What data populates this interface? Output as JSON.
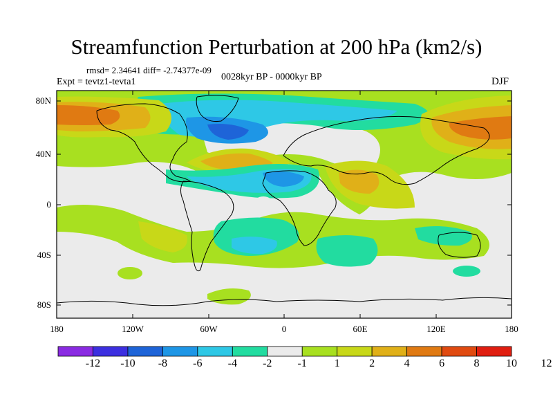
{
  "title": "Streamfunction Perturbation at 200 hPa (km2/s)",
  "stats": "rmsd= 2.34641  diff= -2.74377e-09",
  "experiment": "Expt = tevtz1-tevta1",
  "period": "0028kyr BP - 0000kyr BP",
  "season": "DJF",
  "lat_ticks": [
    "80N",
    "40N",
    "0",
    "40S",
    "80S"
  ],
  "lon_ticks": [
    "180",
    "120W",
    "60W",
    "0",
    "60E",
    "120E",
    "180"
  ],
  "colorbar": {
    "colors": [
      "#8a2be2",
      "#3c2fe0",
      "#1e64d8",
      "#1e96e6",
      "#2ec8e6",
      "#22dca0",
      "#ebebeb",
      "#a8e020",
      "#c8d818",
      "#e0b018",
      "#e07a12",
      "#e04a10",
      "#e01e10"
    ],
    "labels": [
      "-12",
      "-10",
      "-8",
      "-6",
      "-4",
      "-2",
      "-1",
      "1",
      "2",
      "4",
      "6",
      "8",
      "10",
      "12"
    ]
  },
  "field_colors": {
    "neutral": "#ebebeb",
    "lightgreen": "#a8e020",
    "yellowgreen": "#c8d818",
    "gold": "#e0b018",
    "orange": "#e07a12",
    "mint": "#22dca0",
    "cyan": "#2ec8e6",
    "blue": "#1e96e6",
    "darkblue": "#1e64d8"
  }
}
